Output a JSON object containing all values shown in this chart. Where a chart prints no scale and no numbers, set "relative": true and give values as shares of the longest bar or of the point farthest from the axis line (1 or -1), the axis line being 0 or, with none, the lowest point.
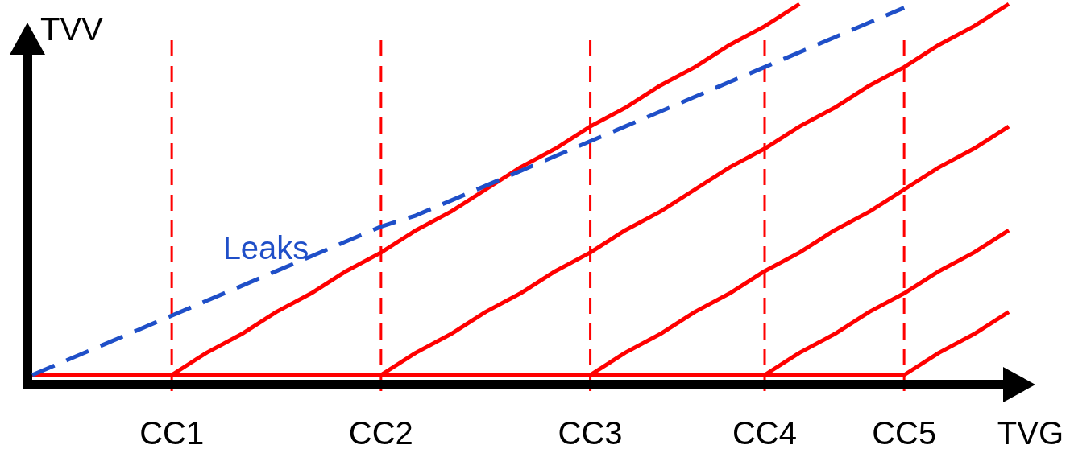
{
  "chart_data": {
    "type": "line",
    "relative": true,
    "xlabel": "TVG",
    "ylabel": "TVV",
    "categories": [
      null,
      null,
      null,
      null,
      "CC1",
      null,
      null,
      null,
      null,
      null,
      "CC2",
      null,
      null,
      null,
      null,
      null,
      "CC3",
      null,
      null,
      null,
      null,
      "CC4",
      null,
      null,
      null,
      "CC5",
      null,
      null,
      null
    ],
    "grid": "x",
    "line_style": "solid",
    "marker": "none",
    "series": [
      {
        "color": "#ff0000",
        "values": [
          0,
          0,
          0,
          0,
          0,
          0.06,
          0.11,
          0.17,
          0.22,
          0.28,
          0.33,
          0.39,
          0.44,
          0.5,
          0.56,
          0.61,
          0.67,
          0.72,
          0.78,
          0.83,
          0.89,
          0.94,
          1.0,
          null,
          null,
          null,
          null,
          null,
          null
        ]
      },
      {
        "color": "#ff0000",
        "values": [
          0,
          0,
          0,
          0,
          0,
          0,
          0,
          0,
          0,
          0,
          0,
          0.06,
          0.11,
          0.17,
          0.22,
          0.28,
          0.33,
          0.39,
          0.44,
          0.5,
          0.56,
          0.61,
          0.67,
          0.72,
          0.78,
          0.83,
          0.89,
          0.94,
          1.0
        ]
      },
      {
        "color": "#ff0000",
        "values": [
          0,
          0,
          0,
          0,
          0,
          0,
          0,
          0,
          0,
          0,
          0,
          0,
          0,
          0,
          0,
          0,
          0,
          0.06,
          0.11,
          0.17,
          0.22,
          0.28,
          0.33,
          0.39,
          0.44,
          0.5,
          0.56,
          0.61,
          0.67
        ]
      },
      {
        "color": "#ff0000",
        "values": [
          0,
          0,
          0,
          0,
          0,
          0,
          0,
          0,
          0,
          0,
          0,
          0,
          0,
          0,
          0,
          0,
          0,
          0,
          0,
          0,
          0,
          0,
          0.06,
          0.11,
          0.17,
          0.22,
          0.28,
          0.33,
          0.39
        ]
      },
      {
        "color": "#ff0000",
        "values": [
          0,
          0,
          0,
          0,
          0,
          0,
          0,
          0,
          0,
          0,
          0,
          0,
          0,
          0,
          0,
          0,
          0,
          0,
          0,
          0,
          0,
          0,
          0,
          0,
          0,
          0,
          0.06,
          0.11,
          0.17
        ]
      },
      {
        "color": "#1f4fc8",
        "line_style": "dashed",
        "values": [
          0,
          0.04,
          0.08,
          0.12,
          0.16,
          0.2,
          0.24,
          0.28,
          0.32,
          0.36,
          0.4,
          0.43,
          0.47,
          0.51,
          0.55,
          0.59,
          0.63,
          0.67,
          0.71,
          0.75,
          0.79,
          0.83,
          0.87,
          0.91,
          0.95,
          0.99,
          null,
          null,
          null
        ]
      }
    ],
    "annotations": [
      "Leaks"
    ]
  }
}
